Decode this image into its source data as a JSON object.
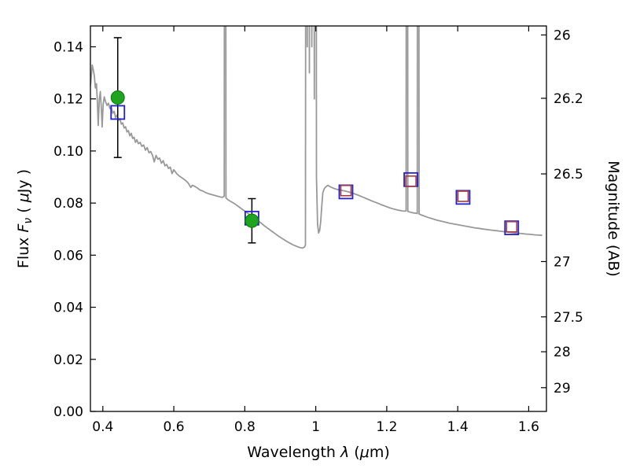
{
  "chart_data": {
    "type": "line+scatter",
    "title": "",
    "xlabel": "Wavelength λ (μm)",
    "ylabel_left": "Flux Fν ( μJy )",
    "ylabel_right": "Magnitude (AB)",
    "xlim": [
      0.365,
      1.65
    ],
    "ylim_flux": [
      0.0,
      0.148
    ],
    "grid": false,
    "legend": "none",
    "label_parts": {
      "flux_prefix": "Flux ",
      "flux_symbol": "F",
      "flux_subscript": "ν",
      "flux_unit_open": " ( ",
      "flux_mu": "μ",
      "flux_unit_close": "Jy )",
      "x_prefix": "Wavelength ",
      "x_symbol": "λ",
      "x_unit_open": " (",
      "x_mu": "μ",
      "x_unit_close": "m)",
      "right_label": "Magnitude (AB)"
    },
    "x_ticks": {
      "values": [
        0.4,
        0.6,
        0.8,
        1.0,
        1.2,
        1.4,
        1.6
      ],
      "labels": [
        "0.4",
        "0.6",
        "0.8",
        "1",
        "1.2",
        "1.4",
        "1.6"
      ]
    },
    "y_ticks_flux": {
      "values": [
        0.0,
        0.02,
        0.04,
        0.06,
        0.08,
        0.1,
        0.12,
        0.14
      ],
      "labels": [
        "0.00",
        "0.02",
        "0.04",
        "0.06",
        "0.08",
        "0.10",
        "0.12",
        "0.14"
      ]
    },
    "y_ticks_mag": {
      "values": [
        26,
        26.2,
        26.5,
        27,
        27.5,
        28,
        29
      ],
      "labels": [
        "26",
        "26.2",
        "26.5",
        "27",
        "27.5",
        "28",
        "29"
      ],
      "ab_zeropoint": 23.9
    },
    "series": {
      "spectrum": {
        "name": "model-spectrum",
        "color": "#999999",
        "points": [
          [
            0.362,
            0.1225
          ],
          [
            0.366,
            0.1265
          ],
          [
            0.37,
            0.133
          ],
          [
            0.373,
            0.1312
          ],
          [
            0.376,
            0.1288
          ],
          [
            0.379,
            0.1242
          ],
          [
            0.382,
            0.1258
          ],
          [
            0.385,
            0.1178
          ],
          [
            0.387,
            0.1098
          ],
          [
            0.39,
            0.1198
          ],
          [
            0.393,
            0.1228
          ],
          [
            0.396,
            0.1158
          ],
          [
            0.398,
            0.1092
          ],
          [
            0.401,
            0.1178
          ],
          [
            0.404,
            0.1208
          ],
          [
            0.408,
            0.1188
          ],
          [
            0.412,
            0.1175
          ],
          [
            0.416,
            0.1183
          ],
          [
            0.42,
            0.1163
          ],
          [
            0.424,
            0.1168
          ],
          [
            0.428,
            0.1145
          ],
          [
            0.432,
            0.1152
          ],
          [
            0.436,
            0.1128
          ],
          [
            0.44,
            0.1138
          ],
          [
            0.444,
            0.1118
          ],
          [
            0.448,
            0.1124
          ],
          [
            0.452,
            0.1103
          ],
          [
            0.456,
            0.1108
          ],
          [
            0.46,
            0.1088
          ],
          [
            0.464,
            0.1093
          ],
          [
            0.468,
            0.1073
          ],
          [
            0.472,
            0.1078
          ],
          [
            0.476,
            0.1058
          ],
          [
            0.48,
            0.1068
          ],
          [
            0.484,
            0.1048
          ],
          [
            0.488,
            0.1053
          ],
          [
            0.492,
            0.1033
          ],
          [
            0.496,
            0.1043
          ],
          [
            0.5,
            0.1028
          ],
          [
            0.505,
            0.1033
          ],
          [
            0.51,
            0.1018
          ],
          [
            0.515,
            0.1023
          ],
          [
            0.52,
            0.1003
          ],
          [
            0.525,
            0.1013
          ],
          [
            0.53,
            0.0993
          ],
          [
            0.535,
            0.0998
          ],
          [
            0.54,
            0.0983
          ],
          [
            0.545,
            0.0958
          ],
          [
            0.55,
            0.0983
          ],
          [
            0.555,
            0.0968
          ],
          [
            0.56,
            0.0973
          ],
          [
            0.565,
            0.0953
          ],
          [
            0.57,
            0.0963
          ],
          [
            0.575,
            0.0943
          ],
          [
            0.58,
            0.0948
          ],
          [
            0.585,
            0.0933
          ],
          [
            0.59,
            0.0938
          ],
          [
            0.595,
            0.0913
          ],
          [
            0.6,
            0.0928
          ],
          [
            0.608,
            0.0913
          ],
          [
            0.616,
            0.0903
          ],
          [
            0.624,
            0.0896
          ],
          [
            0.632,
            0.0888
          ],
          [
            0.64,
            0.0878
          ],
          [
            0.648,
            0.086
          ],
          [
            0.652,
            0.0868
          ],
          [
            0.658,
            0.0865
          ],
          [
            0.666,
            0.0858
          ],
          [
            0.674,
            0.085
          ],
          [
            0.682,
            0.0846
          ],
          [
            0.69,
            0.084
          ],
          [
            0.698,
            0.0836
          ],
          [
            0.706,
            0.0833
          ],
          [
            0.714,
            0.083
          ],
          [
            0.722,
            0.0827
          ],
          [
            0.73,
            0.0824
          ],
          [
            0.736,
            0.0822
          ],
          [
            0.742,
            0.0826
          ],
          [
            0.7445,
            0.6
          ],
          [
            0.747,
            0.082
          ],
          [
            0.752,
            0.0813
          ],
          [
            0.758,
            0.0808
          ],
          [
            0.766,
            0.0802
          ],
          [
            0.774,
            0.0795
          ],
          [
            0.782,
            0.0787
          ],
          [
            0.79,
            0.0779
          ],
          [
            0.798,
            0.0771
          ],
          [
            0.806,
            0.0763
          ],
          [
            0.814,
            0.0755
          ],
          [
            0.822,
            0.0747
          ],
          [
            0.83,
            0.0739
          ],
          [
            0.838,
            0.0731
          ],
          [
            0.846,
            0.0723
          ],
          [
            0.854,
            0.0714
          ],
          [
            0.862,
            0.0706
          ],
          [
            0.87,
            0.0698
          ],
          [
            0.878,
            0.069
          ],
          [
            0.886,
            0.0682
          ],
          [
            0.894,
            0.0674
          ],
          [
            0.902,
            0.0667
          ],
          [
            0.91,
            0.066
          ],
          [
            0.918,
            0.0653
          ],
          [
            0.926,
            0.0647
          ],
          [
            0.934,
            0.0641
          ],
          [
            0.942,
            0.0636
          ],
          [
            0.95,
            0.0632
          ],
          [
            0.956,
            0.0629
          ],
          [
            0.962,
            0.0627
          ],
          [
            0.968,
            0.0631
          ],
          [
            0.971,
            0.064
          ],
          [
            0.9735,
            0.55
          ],
          [
            0.976,
            0.14
          ],
          [
            0.979,
            0.55
          ],
          [
            0.982,
            0.13
          ],
          [
            0.9855,
            0.55
          ],
          [
            0.989,
            0.14
          ],
          [
            0.9925,
            0.55
          ],
          [
            0.996,
            0.12
          ],
          [
            0.9995,
            0.55
          ],
          [
            1.002,
            0.09
          ],
          [
            1.005,
            0.072
          ],
          [
            1.008,
            0.0685
          ],
          [
            1.011,
            0.0695
          ],
          [
            1.014,
            0.073
          ],
          [
            1.017,
            0.079
          ],
          [
            1.02,
            0.084
          ],
          [
            1.024,
            0.0855
          ],
          [
            1.028,
            0.0862
          ],
          [
            1.034,
            0.0868
          ],
          [
            1.04,
            0.0863
          ],
          [
            1.048,
            0.0858
          ],
          [
            1.056,
            0.0854
          ],
          [
            1.064,
            0.0851
          ],
          [
            1.072,
            0.0849
          ],
          [
            1.08,
            0.0847
          ],
          [
            1.09,
            0.0844
          ],
          [
            1.1,
            0.084
          ],
          [
            1.112,
            0.0834
          ],
          [
            1.124,
            0.0828
          ],
          [
            1.136,
            0.0821
          ],
          [
            1.148,
            0.0814
          ],
          [
            1.16,
            0.0807
          ],
          [
            1.172,
            0.0801
          ],
          [
            1.184,
            0.0794
          ],
          [
            1.196,
            0.0788
          ],
          [
            1.208,
            0.0782
          ],
          [
            1.22,
            0.0777
          ],
          [
            1.232,
            0.0773
          ],
          [
            1.244,
            0.077
          ],
          [
            1.25,
            0.0769
          ],
          [
            1.2545,
            0.077
          ],
          [
            1.257,
            0.6
          ],
          [
            1.2595,
            0.0768
          ],
          [
            1.264,
            0.0766
          ],
          [
            1.27,
            0.0764
          ],
          [
            1.276,
            0.0762
          ],
          [
            1.282,
            0.0761
          ],
          [
            1.286,
            0.076
          ],
          [
            1.2885,
            0.6
          ],
          [
            1.291,
            0.0758
          ],
          [
            1.296,
            0.0755
          ],
          [
            1.304,
            0.0751
          ],
          [
            1.316,
            0.0745
          ],
          [
            1.328,
            0.074
          ],
          [
            1.34,
            0.0735
          ],
          [
            1.352,
            0.0731
          ],
          [
            1.364,
            0.0727
          ],
          [
            1.376,
            0.0723
          ],
          [
            1.388,
            0.072
          ],
          [
            1.4,
            0.0717
          ],
          [
            1.412,
            0.0714
          ],
          [
            1.424,
            0.0711
          ],
          [
            1.436,
            0.0708
          ],
          [
            1.448,
            0.0705
          ],
          [
            1.46,
            0.0703
          ],
          [
            1.472,
            0.07
          ],
          [
            1.484,
            0.0698
          ],
          [
            1.496,
            0.0696
          ],
          [
            1.508,
            0.0694
          ],
          [
            1.52,
            0.0692
          ],
          [
            1.532,
            0.069
          ],
          [
            1.544,
            0.0688
          ],
          [
            1.556,
            0.0686
          ],
          [
            1.568,
            0.0684
          ],
          [
            1.58,
            0.0683
          ],
          [
            1.592,
            0.0681
          ],
          [
            1.604,
            0.068
          ],
          [
            1.616,
            0.0678
          ],
          [
            1.628,
            0.0677
          ],
          [
            1.638,
            0.0676
          ]
        ]
      },
      "observed": {
        "name": "observed-photometry",
        "marker": "circle",
        "color": "#1ea41e",
        "edge_color": "#0a7a0a",
        "error_color": "#000000",
        "points": [
          {
            "x": 0.442,
            "y": 0.1205,
            "yerr": 0.023
          },
          {
            "x": 0.82,
            "y": 0.0732,
            "yerr": 0.0085
          }
        ]
      },
      "model_blue": {
        "name": "model-photometry-blue",
        "marker": "open-square",
        "color": "#2222cc",
        "points": [
          {
            "x": 0.442,
            "y": 0.1148
          },
          {
            "x": 0.82,
            "y": 0.0742
          },
          {
            "x": 1.085,
            "y": 0.0843
          },
          {
            "x": 1.268,
            "y": 0.089
          },
          {
            "x": 1.415,
            "y": 0.0822
          },
          {
            "x": 1.552,
            "y": 0.0705
          }
        ]
      },
      "model_red": {
        "name": "model-photometry-red",
        "marker": "open-square",
        "color": "#aa3939",
        "points": [
          {
            "x": 1.085,
            "y": 0.0848
          },
          {
            "x": 1.268,
            "y": 0.0884
          },
          {
            "x": 1.415,
            "y": 0.0826
          },
          {
            "x": 1.552,
            "y": 0.0709
          }
        ]
      }
    }
  }
}
